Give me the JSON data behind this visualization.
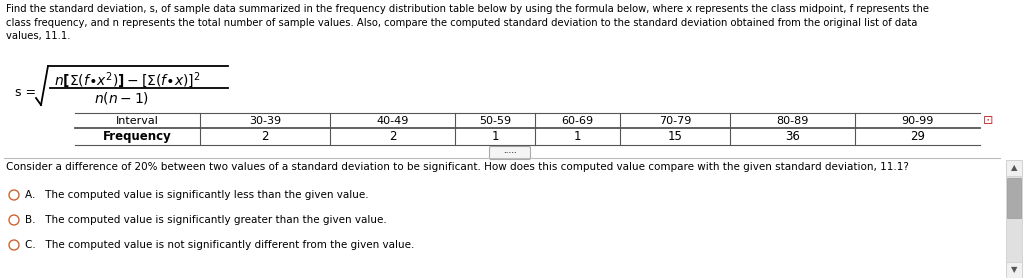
{
  "bg_color": "#ffffff",
  "text_color": "#000000",
  "header_text": "Find the standard deviation, s, of sample data summarized in the frequency distribution table below by using the formula below, where x represents the class midpoint, f represents the\nclass frequency, and n represents the total number of sample values. Also, compare the computed standard deviation to the standard deviation obtained from the original list of data\nvalues, 11.1.",
  "intervals": [
    "30-39",
    "40-49",
    "50-59",
    "60-69",
    "70-79",
    "80-89",
    "90-99"
  ],
  "frequencies": [
    "2",
    "2",
    "1",
    "1",
    "15",
    "36",
    "29"
  ],
  "consider_text": "Consider a difference of 20% between two values of a standard deviation to be significant. How does this computed value compare with the given standard deviation, 11.1?",
  "option_A": "A.   The computed value is significantly less than the given value.",
  "option_B": "B.   The computed value is significantly greater than the given value.",
  "option_C": "C.   The computed value is not significantly different from the given value.",
  "formula_color": "#333333",
  "table_line_color": "#555555",
  "scrollbar_track": "#e0e0e0",
  "scrollbar_thumb": "#aaaaaa",
  "scrollbar_arrow": "#555555",
  "separator_color": "#bbbbbb",
  "btn_edge_color": "#aaaaaa",
  "btn_face_color": "#f5f5f5",
  "circle_color": "#cc6633"
}
